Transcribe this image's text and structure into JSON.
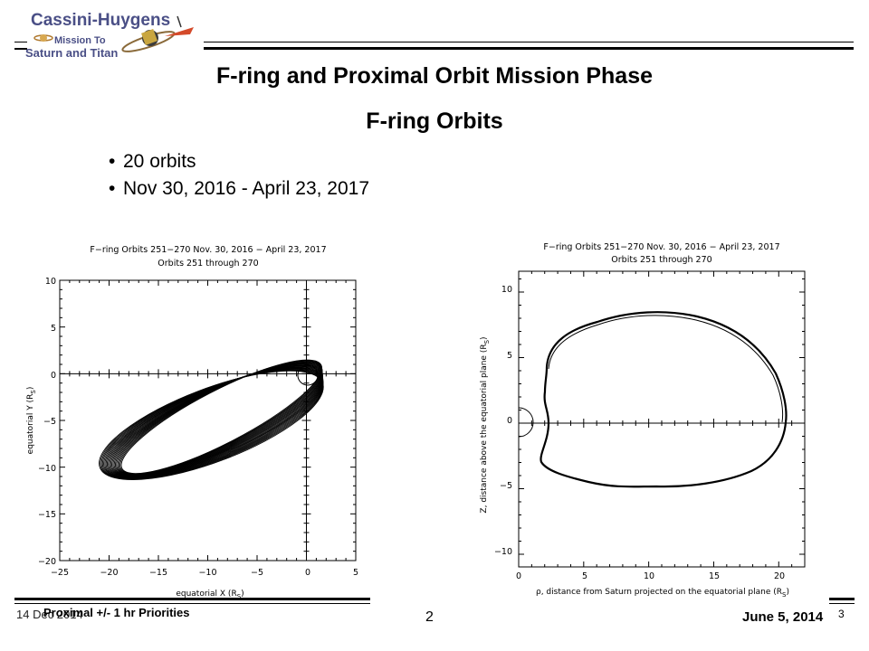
{
  "header": {
    "logo": {
      "line1": "Cassini-Huygens",
      "line2": "Mission To",
      "line3": "Saturn and Titan"
    }
  },
  "slide": {
    "title": "F-ring and Proximal Orbit Mission Phase",
    "subtitle": "F-ring Orbits",
    "bullets": [
      "20 orbits",
      "Nov 30, 2016 - April 23, 2017"
    ]
  },
  "figures": {
    "left": {
      "title_line1": "F−ring Orbits 251−270 Nov. 30, 2016 − April 23, 2017",
      "title_line2": "Orbits 251 through 270",
      "xlabel": "equatorial X (R",
      "xlabel_sub": "S",
      "ylabel": "equatorial Y (R",
      "ylabel_sub": "S",
      "x_ticks": [
        "−25",
        "−20",
        "−15",
        "−10",
        "−5",
        "0",
        "5"
      ],
      "y_ticks": [
        "10",
        "5",
        "0",
        "−5",
        "−10",
        "−15",
        "−20"
      ]
    },
    "right": {
      "title_line1": "F−ring Orbits 251−270 Nov. 30, 2016 − April 23, 2017",
      "title_line2": "Orbits 251 through 270",
      "xlabel": "ρ, distance from Saturn projected on the equatorial plane (R",
      "xlabel_sub": "S",
      "ylabel": "Z, distance above the equatorial plane (R",
      "ylabel_sub": "S",
      "x_ticks": [
        "0",
        "5",
        "10",
        "15",
        "20"
      ],
      "y_ticks": [
        "10",
        "5",
        "0",
        "−5",
        "−10"
      ]
    }
  },
  "footer": {
    "date_left": "14 Dec 2014",
    "center_text": "Proximal +/- 1 hr Priorities",
    "page_number": "2",
    "date_right": "June 5, 2014",
    "slide_number": "3"
  }
}
